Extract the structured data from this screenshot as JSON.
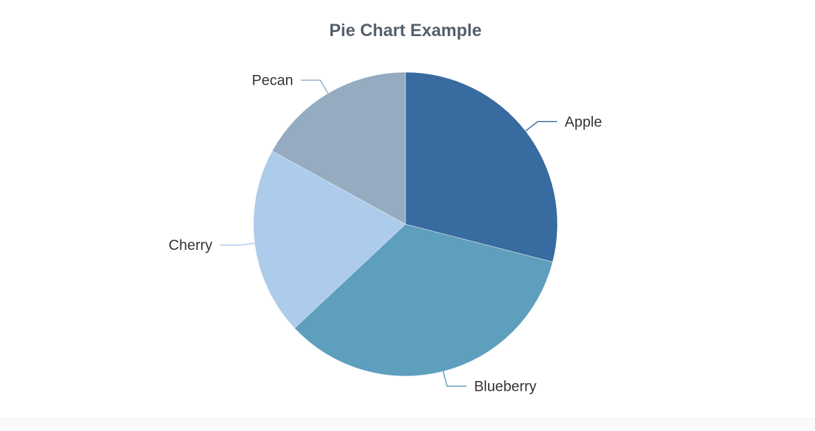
{
  "chart_data": {
    "type": "pie",
    "title": "Pie Chart Example",
    "categories": [
      "Apple",
      "Blueberry",
      "Cherry",
      "Pecan"
    ],
    "values": [
      29,
      34,
      20,
      17
    ],
    "colors": [
      "#386ba0",
      "#5e9fbd",
      "#adcbeb",
      "#94abc0"
    ],
    "start_angle": "top, clockwise",
    "legend": "none",
    "labels": "outside with leader lines"
  }
}
